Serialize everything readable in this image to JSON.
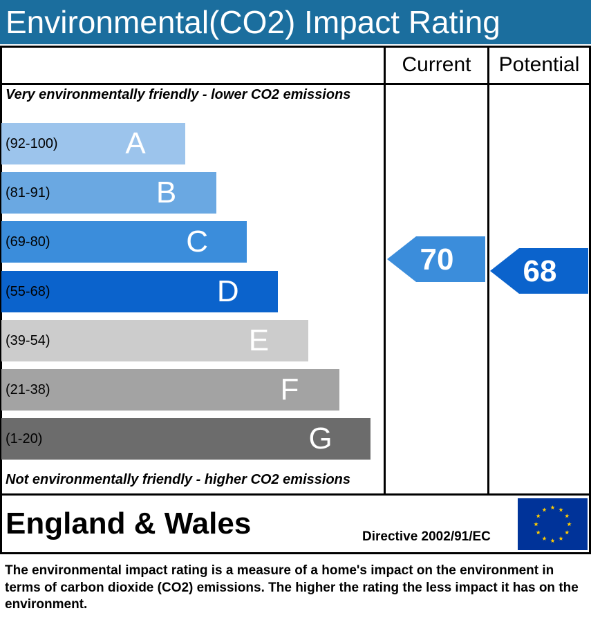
{
  "header": {
    "title": "Environmental(CO2) Impact Rating"
  },
  "columns": {
    "current": "Current",
    "potential": "Potential"
  },
  "notes": {
    "top": "Very environmentally friendly - lower CO2 emissions",
    "bottom": "Not environmentally friendly - higher CO2 emissions"
  },
  "chart_data": {
    "type": "bar",
    "title": "Environmental(CO2) Impact Rating",
    "categories": [
      "A",
      "B",
      "C",
      "D",
      "E",
      "F",
      "G"
    ],
    "ranges": [
      "(92-100)",
      "(81-91)",
      "(69-80)",
      "(55-68)",
      "(39-54)",
      "(21-38)",
      "(1-20)"
    ],
    "bands": [
      {
        "letter": "A",
        "range": "(92-100)",
        "min": 92,
        "max": 100,
        "color": "#9cc4ec"
      },
      {
        "letter": "B",
        "range": "(81-91)",
        "min": 81,
        "max": 91,
        "color": "#6aa8e2"
      },
      {
        "letter": "C",
        "range": "(69-80)",
        "min": 69,
        "max": 80,
        "color": "#3b8ddb"
      },
      {
        "letter": "D",
        "range": "(55-68)",
        "min": 55,
        "max": 68,
        "color": "#0b63cc"
      },
      {
        "letter": "E",
        "range": "(39-54)",
        "min": 39,
        "max": 54,
        "color": "#cccccc"
      },
      {
        "letter": "F",
        "range": "(21-38)",
        "min": 21,
        "max": 38,
        "color": "#a3a3a3"
      },
      {
        "letter": "G",
        "range": "(1-20)",
        "min": 1,
        "max": 20,
        "color": "#6c6c6c"
      }
    ],
    "series": [
      {
        "name": "Current",
        "value": 70,
        "band": "C",
        "color": "#3b8ddb"
      },
      {
        "name": "Potential",
        "value": 68,
        "band": "D",
        "color": "#0b63cc"
      }
    ]
  },
  "footer": {
    "region": "England & Wales",
    "directive": "Directive 2002/91/EC",
    "flag_icon": "eu-flag-icon",
    "flag_colors": {
      "background": "#003399",
      "stars": "#ffcc00"
    }
  },
  "description": "The environmental impact rating is a measure of a home's impact on the environment in terms of carbon dioxide (CO2) emissions. The higher the rating the less impact it has on the environment."
}
